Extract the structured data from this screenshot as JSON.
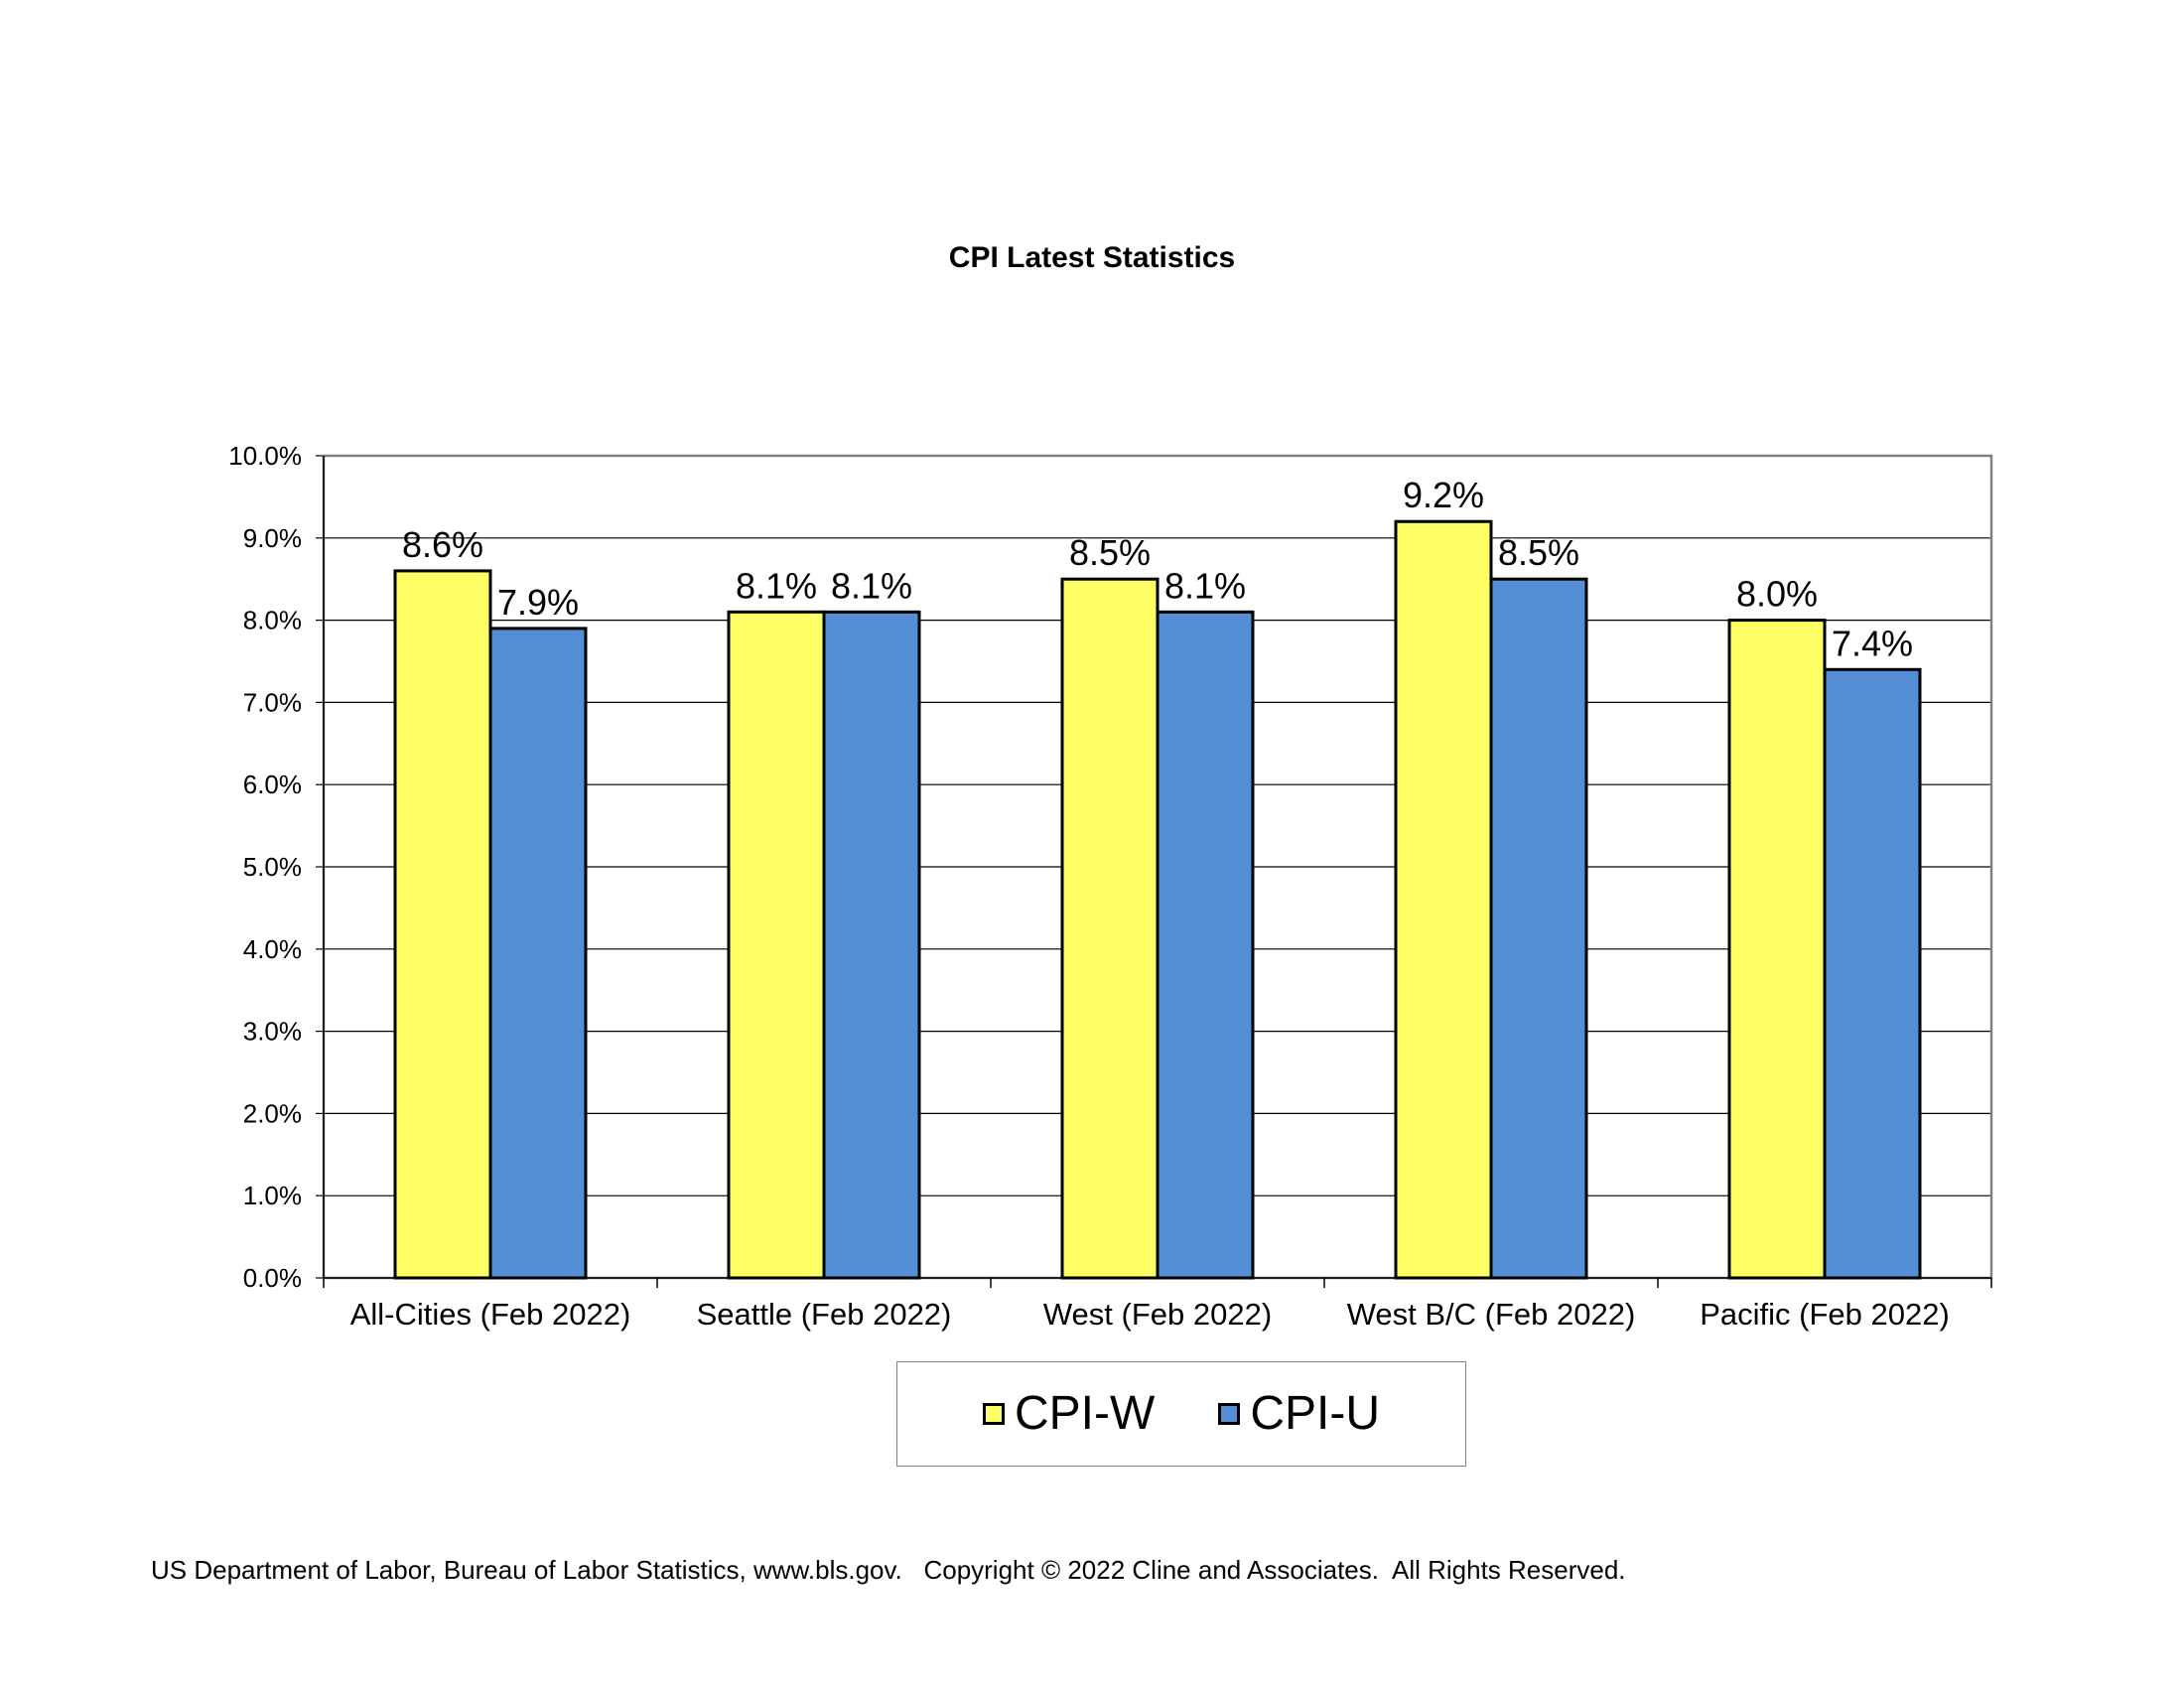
{
  "chart_data": {
    "type": "bar",
    "title": "CPI Latest Statistics",
    "xlabel": "",
    "ylabel": "",
    "ylim": [
      0,
      10
    ],
    "y_ticks": [
      "0.0%",
      "1.0%",
      "2.0%",
      "3.0%",
      "4.0%",
      "5.0%",
      "6.0%",
      "7.0%",
      "8.0%",
      "9.0%",
      "10.0%"
    ],
    "categories": [
      "All-Cities (Feb 2022)",
      "Seattle (Feb 2022)",
      "West (Feb 2022)",
      "West B/C (Feb 2022)",
      "Pacific (Feb 2022)"
    ],
    "series": [
      {
        "name": "CPI-W",
        "color": "#FFFF66",
        "values": [
          8.6,
          8.1,
          8.5,
          9.2,
          8.0
        ],
        "labels": [
          "8.6%",
          "8.1%",
          "8.5%",
          "9.2%",
          "8.0%"
        ]
      },
      {
        "name": "CPI-U",
        "color": "#558ED5",
        "values": [
          7.9,
          8.1,
          8.1,
          8.5,
          7.4
        ],
        "labels": [
          "7.9%",
          "8.1%",
          "8.1%",
          "8.5%",
          "7.4%"
        ]
      }
    ],
    "grid": true,
    "legend_position": "bottom"
  },
  "footer": {
    "note": "US Department of Labor, Bureau of Labor Statistics, www.bls.gov.   Copyright © 2022 Cline and Associates.  All Rights Reserved."
  }
}
